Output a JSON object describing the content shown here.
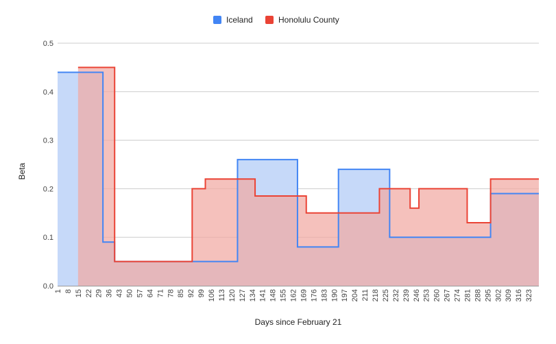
{
  "chart_data": {
    "type": "area",
    "title": "",
    "xlabel": "Days since February 21",
    "ylabel": "Beta",
    "ylim": [
      0,
      0.5
    ],
    "yticks": [
      "0.0",
      "0.1",
      "0.2",
      "0.3",
      "0.4",
      "0.5"
    ],
    "x_tick_labels": [
      "1",
      "8",
      "15",
      "22",
      "29",
      "36",
      "43",
      "50",
      "57",
      "64",
      "71",
      "78",
      "85",
      "92",
      "99",
      "106",
      "113",
      "120",
      "127",
      "134",
      "141",
      "148",
      "155",
      "162",
      "169",
      "176",
      "183",
      "190",
      "197",
      "204",
      "211",
      "218",
      "225",
      "232",
      "239",
      "246",
      "253",
      "260",
      "267",
      "274",
      "281",
      "288",
      "295",
      "302",
      "309",
      "316",
      "323"
    ],
    "x_range": [
      1,
      330
    ],
    "grid": true,
    "legend_position": "top-center",
    "series": [
      {
        "name": "Iceland",
        "color": "#4285f4",
        "fill": "#c6d9f9",
        "steps": [
          {
            "x": 1,
            "y": 0.44
          },
          {
            "x": 32,
            "y": 0.09
          },
          {
            "x": 40,
            "y": 0.05
          },
          {
            "x": 124,
            "y": 0.26
          },
          {
            "x": 165,
            "y": 0.08
          },
          {
            "x": 193,
            "y": 0.24
          },
          {
            "x": 228,
            "y": 0.1
          },
          {
            "x": 297,
            "y": 0.19
          }
        ]
      },
      {
        "name": "Honolulu County",
        "color": "#ea4335",
        "fill": "#f1a9a2",
        "steps": [
          {
            "x": 15,
            "y": 0.45
          },
          {
            "x": 40,
            "y": 0.05
          },
          {
            "x": 93,
            "y": 0.2
          },
          {
            "x": 102,
            "y": 0.22
          },
          {
            "x": 136,
            "y": 0.185
          },
          {
            "x": 171,
            "y": 0.15
          },
          {
            "x": 221,
            "y": 0.2
          },
          {
            "x": 242,
            "y": 0.16
          },
          {
            "x": 248,
            "y": 0.2
          },
          {
            "x": 281,
            "y": 0.13
          },
          {
            "x": 297,
            "y": 0.22
          }
        ]
      }
    ]
  }
}
